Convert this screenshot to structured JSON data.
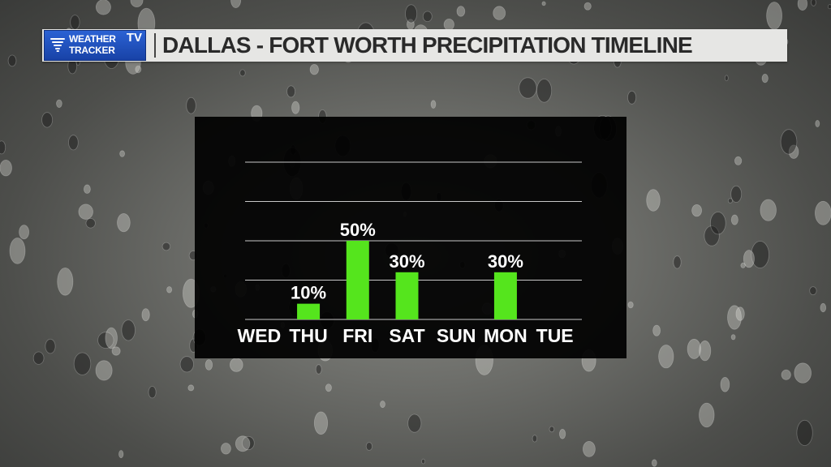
{
  "header": {
    "logo_line1": "WEATHER",
    "logo_line2": "TRACKER",
    "logo_tv": "TV",
    "title": "DALLAS - FORT WORTH PRECIPITATION TIMELINE"
  },
  "colors": {
    "bar": "#55e51d",
    "grid": "#c8c8c8",
    "panel": "#000000",
    "header_bg": "#e6e6e4",
    "logo_blue": "#1f4fc4"
  },
  "icons": {
    "logo": "tornado-icon"
  },
  "chart_data": {
    "type": "bar",
    "title": "",
    "xlabel": "",
    "ylabel": "",
    "categories": [
      "WED",
      "THU",
      "FRI",
      "SAT",
      "SUN",
      "MON",
      "TUE"
    ],
    "values": [
      0,
      10,
      50,
      30,
      0,
      30,
      0
    ],
    "value_labels": [
      "",
      "10%",
      "50%",
      "30%",
      "",
      "30%",
      ""
    ],
    "ylim": [
      0,
      100
    ],
    "grid": true,
    "legend": "none"
  }
}
